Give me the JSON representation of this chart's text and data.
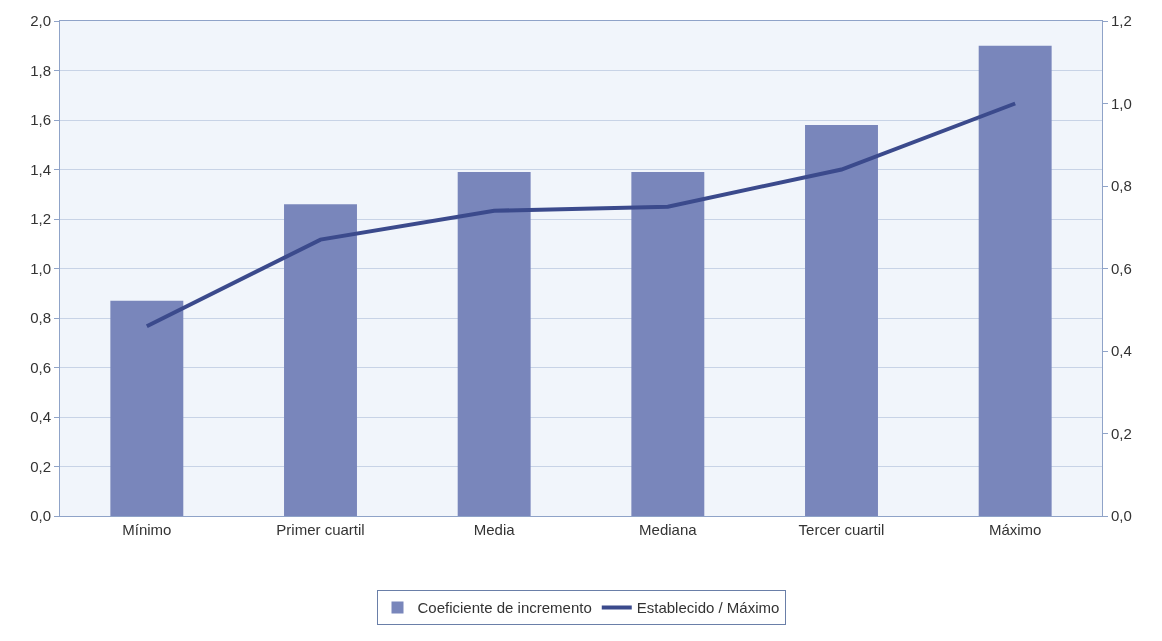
{
  "chart_data": {
    "type": "bar",
    "categories": [
      "Mínimo",
      "Primer cuartil",
      "Media",
      "Mediana",
      "Tercer cuartil",
      "Máximo"
    ],
    "series": [
      {
        "name": "Coeficiente de incremento",
        "color": "#7986bb",
        "values": [
          0.87,
          1.26,
          1.39,
          1.39,
          1.58,
          1.9
        ]
      },
      {
        "name": "Establecido / Máximo",
        "type": "line",
        "axis": "y2",
        "color": "#3b4a8c",
        "values": [
          0.46,
          0.67,
          0.74,
          0.75,
          0.84,
          1.0
        ]
      }
    ],
    "ylim": [
      0,
      2
    ],
    "yticks": [
      {
        "value": 0,
        "label": "0,0"
      },
      {
        "value": 0.2,
        "label": "0,2"
      },
      {
        "value": 0.4,
        "label": "0,4"
      },
      {
        "value": 0.6,
        "label": "0,6"
      },
      {
        "value": 0.8,
        "label": "0,8"
      },
      {
        "value": 1,
        "label": "1,0"
      },
      {
        "value": 1.2,
        "label": "1,2"
      },
      {
        "value": 1.4,
        "label": "1,4"
      },
      {
        "value": 1.6,
        "label": "1,6"
      },
      {
        "value": 1.8,
        "label": "1,8"
      },
      {
        "value": 2,
        "label": "2,0"
      }
    ],
    "y2lim": [
      0,
      1.2
    ],
    "y2ticks": [
      {
        "value": 0,
        "label": "0,0"
      },
      {
        "value": 0.2,
        "label": "0,2"
      },
      {
        "value": 0.4,
        "label": "0,4"
      },
      {
        "value": 0.6,
        "label": "0,6"
      },
      {
        "value": 0.8,
        "label": "0,8"
      },
      {
        "value": 1,
        "label": "1,0"
      },
      {
        "value": 1.2,
        "label": "1,2"
      }
    ],
    "grid": "y",
    "legend": "bottom",
    "marker": "none",
    "line_style": "solid"
  }
}
